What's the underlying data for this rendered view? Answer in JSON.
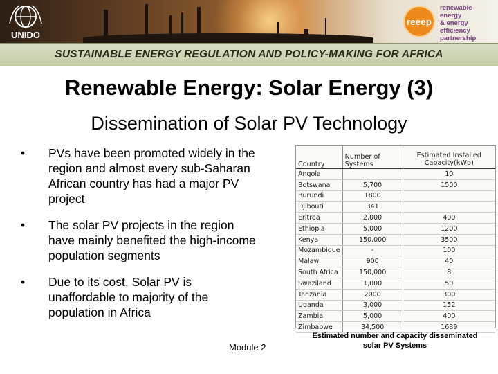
{
  "header": {
    "logo_left": "UNIDO",
    "logo_right": "reeep",
    "tagline_lines": [
      "renewable",
      "energy",
      "& energy",
      "efficiency",
      "partnership"
    ],
    "banner_title": "SUSTAINABLE ENERGY REGULATION AND POLICY-MAKING FOR AFRICA"
  },
  "slide": {
    "title": "Renewable Energy: Solar Energy (3)",
    "subtitle": "Dissemination of Solar PV Technology",
    "bullets": [
      "PVs have been promoted widely in the region and almost every sub-Saharan African country has had a major PV project",
      "The solar PV projects in the region have mainly benefited the high-income population segments",
      "Due to its cost, Solar PV is unaffordable to majority of the population in Africa"
    ],
    "bullet_glyph": "•",
    "footer": "Module 2"
  },
  "table": {
    "headers": [
      "Country",
      "Number of Systems",
      "Estimated Installed Capacity(kWp)"
    ],
    "rows": [
      [
        "Angola",
        "",
        "10"
      ],
      [
        "Botswana",
        "5,700",
        "1500"
      ],
      [
        "Burundi",
        "1800",
        ""
      ],
      [
        "Djibouti",
        "341",
        ""
      ],
      [
        "Eritrea",
        "2,000",
        "400"
      ],
      [
        "Ethiopia",
        "5,000",
        "1200"
      ],
      [
        "Kenya",
        "150,000",
        "3500"
      ],
      [
        "Mozambique",
        "-",
        "100"
      ],
      [
        "Malawi",
        "900",
        "40"
      ],
      [
        "South Africa",
        "150,000",
        "8"
      ],
      [
        "Swaziland",
        "1,000",
        "50"
      ],
      [
        "Tanzania",
        "2000",
        "300"
      ],
      [
        "Uganda",
        "3,000",
        "152"
      ],
      [
        "Zambia",
        "5,000",
        "400"
      ],
      [
        "Zimbabwe",
        "34,500",
        "1689"
      ]
    ],
    "caption": "Estimated number and capacity disseminated solar PV Systems"
  },
  "colors": {
    "reeep_orange": "#ee8a1c",
    "tagline_purple": "#7a3f86",
    "strip_green": "#c4cca6"
  }
}
